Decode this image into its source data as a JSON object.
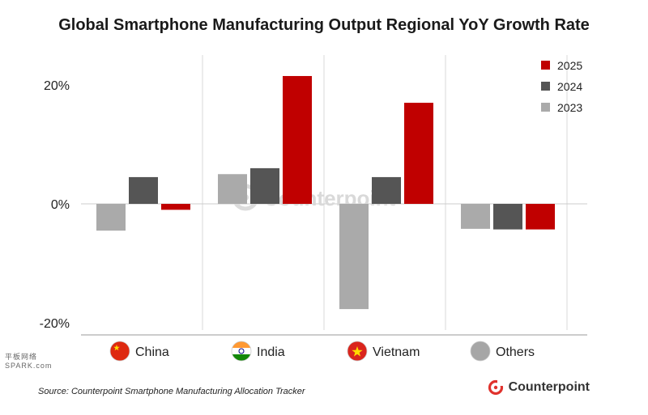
{
  "chart_data": {
    "type": "bar",
    "title": "Global Smartphone Manufacturing Output Regional YoY Growth Rate",
    "categories": [
      "China",
      "India",
      "Vietnam",
      "Others"
    ],
    "series": [
      {
        "name": "2023",
        "color": "#aaaaaa",
        "values": [
          -4.5,
          5.0,
          -17.7,
          -4.2
        ]
      },
      {
        "name": "2024",
        "color": "#555555",
        "values": [
          4.5,
          6.0,
          4.5,
          -4.3
        ]
      },
      {
        "name": "2025",
        "color": "#c00000",
        "values": [
          -1.0,
          21.5,
          17.0,
          -4.3
        ]
      }
    ],
    "ylim": [
      -20,
      25
    ],
    "y_ticks": [
      20,
      0,
      -20
    ],
    "y_tick_labels": [
      "20%",
      "0%",
      "-20%"
    ],
    "legend_order": [
      "2025",
      "2024",
      "2023"
    ],
    "legend_position": "top-right",
    "grid": "vertical category separators"
  },
  "category_icons": [
    "china-flag-icon",
    "india-flag-icon",
    "vietnam-flag-icon",
    "grey-circle-icon"
  ],
  "watermark": "Counterpoint",
  "source": "Source: Counterpoint Smartphone Manufacturing Allocation Tracker",
  "brand": {
    "name": "Counterpoint",
    "color": "#e0322d"
  },
  "side_watermark": [
    "平板网络",
    "SPARK.com"
  ]
}
